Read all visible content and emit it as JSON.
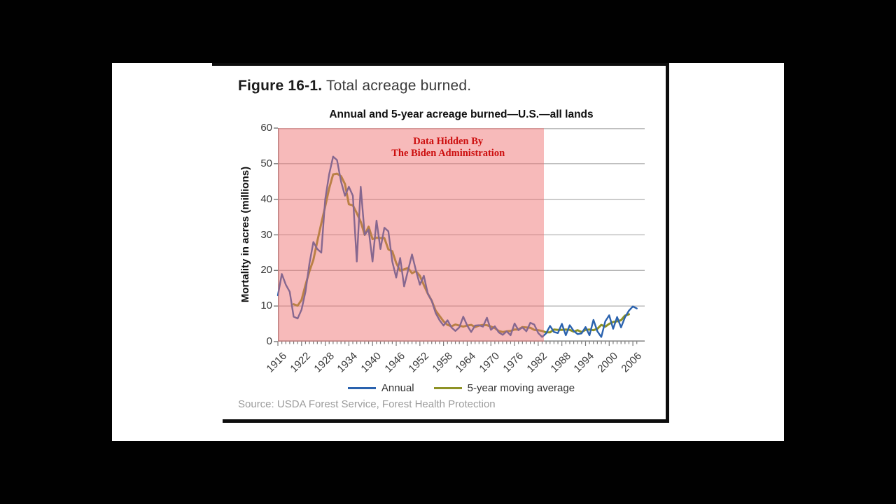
{
  "figure": {
    "label": "Figure 16-1.",
    "caption": "Total acreage burned.",
    "source": "Source: USDA Forest Service, Forest Health Protection"
  },
  "overlay": {
    "line1": "Data Hidden By",
    "line2": "The Biden Administration",
    "text_color": "#cc0e0e",
    "region_fill": "rgba(239,109,109,0.47)",
    "start_year": 1916,
    "end_year": 1983.5
  },
  "chart_data": {
    "type": "line",
    "title": "Annual and 5-year acreage burned—U.S.—all lands",
    "ylabel": "Mortality in acres (millions)",
    "xlabel": "",
    "ylim": [
      0,
      60
    ],
    "xlim": [
      1916,
      2009
    ],
    "y_ticks": [
      0,
      10,
      20,
      30,
      40,
      50,
      60
    ],
    "x_ticks": [
      1916,
      1922,
      1928,
      1934,
      1940,
      1946,
      1952,
      1958,
      1964,
      1970,
      1976,
      1982,
      1988,
      1994,
      2000,
      2006
    ],
    "grid": "horizontal-only",
    "legend_position": "bottom-center",
    "gridline_color": "#b5b5b5",
    "axis_color": "#8a8a8a",
    "series": [
      {
        "name": "Annual",
        "color": "#2a62ae",
        "x_start": 1916,
        "values": [
          13,
          19,
          16,
          14,
          7,
          6.5,
          9,
          14,
          22,
          28,
          26,
          25,
          40,
          47,
          52,
          51,
          45,
          41,
          43.5,
          41,
          22.5,
          43.5,
          30,
          31.5,
          22.5,
          34,
          26,
          32,
          31,
          22.5,
          18,
          23.5,
          15.5,
          20,
          24.5,
          20,
          16,
          18.5,
          13.5,
          11.5,
          8,
          6,
          4.5,
          6,
          4,
          3,
          4,
          7,
          4.5,
          2.7,
          4.5,
          4.6,
          4.2,
          6.7,
          3.3,
          4.3,
          2.6,
          1.9,
          2.9,
          1.8,
          5.1,
          3.2,
          4,
          2.9,
          5.3,
          4.8,
          2.4,
          1.3,
          2.3,
          4.4,
          2.7,
          2.4,
          5,
          1.8,
          4.6,
          3,
          2.1,
          2.3,
          4.1,
          1.8,
          6.1,
          2.9,
          1.3,
          5.7,
          7.4,
          3.6,
          6.9,
          4,
          6.8,
          8.7,
          9.9,
          9.3
        ]
      },
      {
        "name": "5-year moving average",
        "color": "#8e9225",
        "x_start": 1920,
        "values": [
          10.5,
          10.1,
          11.7,
          15.9,
          19.8,
          23,
          28.2,
          33.2,
          38,
          43,
          47,
          47.2,
          46.5,
          44.3,
          38.6,
          38.3,
          36.1,
          33.7,
          30,
          32.3,
          28.8,
          29.2,
          29.1,
          29.1,
          25.9,
          25.4,
          22.1,
          19.9,
          20.3,
          20.7,
          19.2,
          19.8,
          18.5,
          15.9,
          13.5,
          11.5,
          8.7,
          7.2,
          5.7,
          4.7,
          4.3,
          4.8,
          4.5,
          4.2,
          4.5,
          4.7,
          4.1,
          4.5,
          4.7,
          4.6,
          4.2,
          3.8,
          3.0,
          2.7,
          2.9,
          3.0,
          3.4,
          3.4,
          4.1,
          4.0,
          3.9,
          3.3,
          3.2,
          3.0,
          2.6,
          2.6,
          3.4,
          3.3,
          3.3,
          3.4,
          3.3,
          2.8,
          3.2,
          2.7,
          3.3,
          3.4,
          3.2,
          3.6,
          4.7,
          4.2,
          5.0,
          5.5,
          5.7,
          6.0,
          7.3,
          7.7
        ]
      }
    ]
  }
}
